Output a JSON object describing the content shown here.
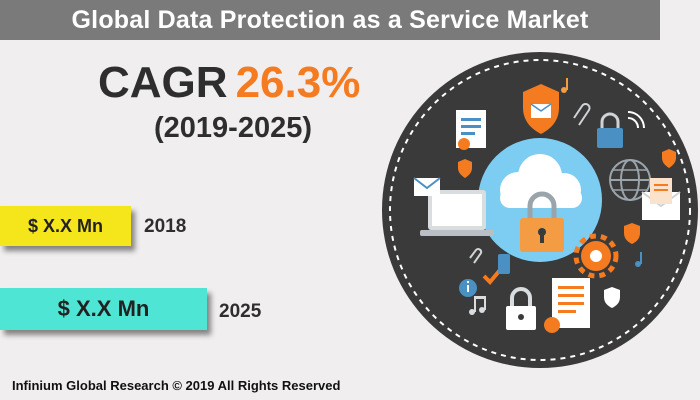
{
  "header": {
    "title": "Global Data Protection as a Service Market"
  },
  "growth": {
    "cagr_label": "CAGR",
    "cagr_value": "26.3%",
    "period": "(2019-2025)"
  },
  "market_values": [
    {
      "value": "$ X.X Mn",
      "year": "2018",
      "color": "#f4e61a"
    },
    {
      "value": "$ X.X Mn",
      "year": "2025",
      "color": "#4fe5d4"
    }
  ],
  "footer": {
    "copyright": "Infinium Global Research © 2019 All Rights Reserved"
  },
  "colors": {
    "accent": "#f47b20",
    "title_bar": "#7a7a7a",
    "circle": "#3a3a3a",
    "cloud": "#8fd3f5"
  },
  "illustration": {
    "icons": [
      "cloud-icon",
      "padlock-icon",
      "envelope-icon",
      "shield-icon",
      "gear-icon",
      "document-icon",
      "globe-icon",
      "music-note-icon",
      "paperclip-icon",
      "wifi-icon",
      "laptop-icon",
      "info-icon",
      "check-icon",
      "phone-icon"
    ]
  }
}
